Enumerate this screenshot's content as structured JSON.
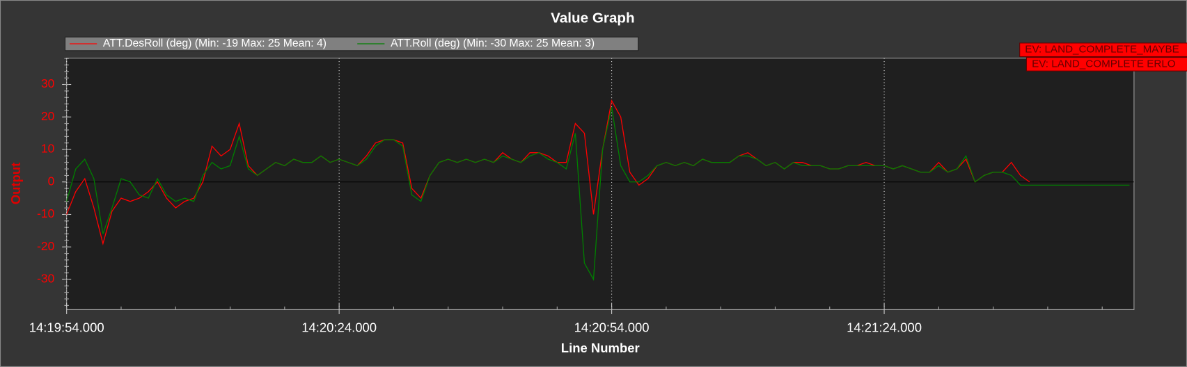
{
  "chart_data": {
    "type": "line",
    "title": "Value Graph",
    "x_label": "Line Number",
    "y_label": "Output",
    "x": [
      51594,
      51595,
      51596,
      51597,
      51598,
      51599,
      51600,
      51601,
      51602,
      51603,
      51604,
      51605,
      51606,
      51607,
      51608,
      51609,
      51610,
      51611,
      51612,
      51613,
      51614,
      51615,
      51616,
      51617,
      51618,
      51619,
      51620,
      51621,
      51622,
      51623,
      51624,
      51625,
      51626,
      51627,
      51628,
      51629,
      51630,
      51631,
      51632,
      51633,
      51634,
      51635,
      51636,
      51637,
      51638,
      51639,
      51640,
      51641,
      51642,
      51643,
      51644,
      51645,
      51646,
      51647,
      51648,
      51649,
      51650,
      51651,
      51652,
      51653,
      51654,
      51655,
      51656,
      51657,
      51658,
      51659,
      51660,
      51661,
      51662,
      51663,
      51664,
      51665,
      51666,
      51667,
      51668,
      51669,
      51670,
      51671,
      51672,
      51673,
      51674,
      51675,
      51676,
      51677,
      51678,
      51679,
      51680,
      51681,
      51682,
      51683,
      51684,
      51685,
      51686,
      51687,
      51688,
      51689,
      51690,
      51691,
      51692,
      51693,
      51694,
      51695,
      51696,
      51697,
      51698,
      51699,
      51700,
      51701,
      51702,
      51703,
      51704,
      51705,
      51706,
      51707,
      51708,
      51709,
      51710,
      51711
    ],
    "series": [
      {
        "name": "ATT.DesRoll (deg) (Min: -19 Max: 25 Mean: 4)",
        "color": "#ff0000",
        "values": [
          -10,
          -3,
          1,
          -8,
          -19,
          -9,
          -5,
          -6,
          -5,
          -3,
          0,
          -5,
          -8,
          -6,
          -5,
          0,
          11,
          8,
          10,
          18,
          5,
          2,
          4,
          6,
          5,
          7,
          6,
          6,
          8,
          6,
          7,
          6,
          5,
          8,
          12,
          13,
          13,
          12,
          -2,
          -5,
          2,
          6,
          7,
          6,
          7,
          6,
          7,
          6,
          9,
          7,
          6,
          9,
          9,
          8,
          6,
          6,
          18,
          15,
          -10,
          10,
          25,
          20,
          3,
          -1,
          1,
          5,
          6,
          5,
          6,
          5,
          7,
          6,
          6,
          6,
          8,
          9,
          7,
          5,
          6,
          4,
          6,
          6,
          5,
          5,
          4,
          4,
          5,
          5,
          6,
          5,
          5,
          4,
          5,
          4,
          3,
          3,
          6,
          3,
          4,
          7,
          0,
          2,
          3,
          3,
          6,
          2,
          0,
          null,
          null,
          null,
          null,
          null,
          null,
          null,
          null,
          null,
          null,
          null
        ]
      },
      {
        "name": "ATT.Roll (deg) (Min: -30 Max: 25 Mean: 3)",
        "color": "#008000",
        "values": [
          -6,
          4,
          7,
          1,
          -16,
          -8,
          1,
          0,
          -4,
          -5,
          1,
          -4,
          -6,
          -5,
          -6,
          2,
          6,
          4,
          5,
          14,
          4,
          2,
          4,
          6,
          5,
          7,
          6,
          6,
          8,
          6,
          7,
          6,
          5,
          7,
          11,
          13,
          13,
          11,
          -4,
          -6,
          2,
          6,
          7,
          6,
          7,
          6,
          7,
          6,
          8,
          7,
          6,
          8,
          9,
          7,
          6,
          4,
          15,
          -25,
          -30,
          10,
          23,
          5,
          0,
          0,
          2,
          5,
          6,
          5,
          6,
          5,
          7,
          6,
          6,
          6,
          8,
          8,
          7,
          5,
          6,
          4,
          6,
          5,
          5,
          5,
          4,
          4,
          5,
          5,
          5,
          5,
          5,
          4,
          5,
          4,
          3,
          3,
          5,
          3,
          4,
          8,
          0,
          2,
          3,
          3,
          2,
          -1,
          -1,
          -1,
          -1,
          -1,
          -1,
          -1,
          -1,
          -1,
          -1,
          -1,
          -1,
          -1
        ]
      }
    ],
    "xlim": [
      51594,
      51711.5
    ],
    "xticks": [
      {
        "value": 51594,
        "label": "14:19:54.000"
      },
      {
        "value": 51624,
        "label": "14:20:24.000"
      },
      {
        "value": 51654,
        "label": "14:20:54.000"
      },
      {
        "value": 51684,
        "label": "14:21:24.000"
      }
    ],
    "ylim": [
      -39.3,
      38.1
    ],
    "yticks": [
      -30,
      -20,
      -10,
      0,
      10,
      20,
      30
    ],
    "grid": true,
    "annotations": [
      "EV: LAND_COMPLETE_MAYBE",
      "EV: LAND_COMPLETE ERLO"
    ]
  }
}
